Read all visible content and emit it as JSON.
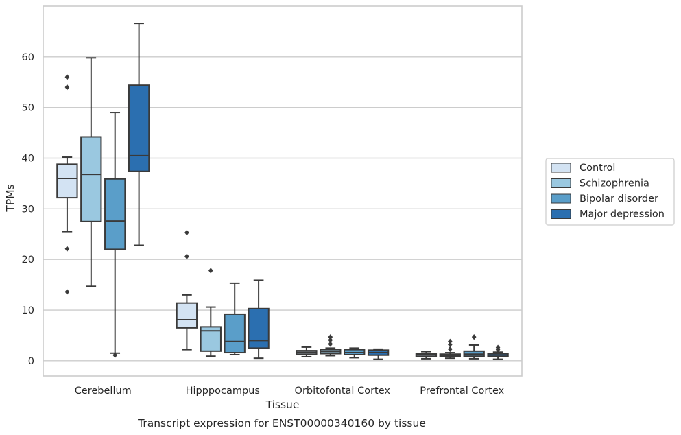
{
  "chart_data": {
    "type": "box",
    "caption": "Transcript expression for ENST00000340160 by tissue",
    "xlabel": "Tissue",
    "ylabel": "TPMs",
    "ylim": [
      -3,
      70
    ],
    "yticks": [
      0,
      10,
      20,
      30,
      40,
      50,
      60
    ],
    "grid": "horizontal",
    "legend_position": "right",
    "categories": [
      "Cerebellum",
      "Hipppocampus",
      "Orbitofontal Cortex",
      "Prefrontal Cortex"
    ],
    "series": [
      {
        "name": "Control",
        "color": "#d3e3f3",
        "boxes": [
          {
            "whislo": 25.5,
            "q1": 32.2,
            "med": 36.0,
            "q3": 38.8,
            "whishi": 40.2,
            "fliers": [
              56.0,
              54.0,
              22.1,
              13.6
            ]
          },
          {
            "whislo": 2.2,
            "q1": 6.5,
            "med": 8.1,
            "q3": 11.4,
            "whishi": 13.0,
            "fliers": [
              25.3,
              20.6
            ]
          },
          {
            "whislo": 0.8,
            "q1": 1.3,
            "med": 1.7,
            "q3": 2.0,
            "whishi": 2.7,
            "fliers": []
          },
          {
            "whislo": 0.4,
            "q1": 0.9,
            "med": 1.2,
            "q3": 1.4,
            "whishi": 1.8,
            "fliers": []
          }
        ]
      },
      {
        "name": "Schizophrenia",
        "color": "#9ac8e0",
        "boxes": [
          {
            "whislo": 14.7,
            "q1": 27.5,
            "med": 36.8,
            "q3": 44.2,
            "whishi": 59.8,
            "fliers": []
          },
          {
            "whislo": 0.9,
            "q1": 1.9,
            "med": 5.9,
            "q3": 6.7,
            "whishi": 10.6,
            "fliers": [
              17.8
            ]
          },
          {
            "whislo": 1.0,
            "q1": 1.4,
            "med": 1.8,
            "q3": 2.2,
            "whishi": 2.5,
            "fliers": [
              4.7,
              4.1,
              3.3
            ]
          },
          {
            "whislo": 0.5,
            "q1": 0.9,
            "med": 1.1,
            "q3": 1.3,
            "whishi": 1.6,
            "fliers": [
              3.8,
              3.2,
              2.3
            ]
          }
        ]
      },
      {
        "name": "Bipolar disorder",
        "color": "#5a9ec9",
        "boxes": [
          {
            "whislo": 1.5,
            "q1": 22.0,
            "med": 27.6,
            "q3": 35.9,
            "whishi": 49.0,
            "fliers": [
              1.1
            ]
          },
          {
            "whislo": 1.2,
            "q1": 1.6,
            "med": 3.8,
            "q3": 9.2,
            "whishi": 15.3,
            "fliers": []
          },
          {
            "whislo": 0.6,
            "q1": 1.2,
            "med": 1.6,
            "q3": 2.2,
            "whishi": 2.5,
            "fliers": []
          },
          {
            "whislo": 0.4,
            "q1": 0.9,
            "med": 1.3,
            "q3": 1.9,
            "whishi": 3.1,
            "fliers": [
              4.7
            ]
          }
        ]
      },
      {
        "name": "Major depression",
        "color": "#2b6fb0",
        "boxes": [
          {
            "whislo": 22.8,
            "q1": 37.4,
            "med": 40.5,
            "q3": 54.4,
            "whishi": 66.6,
            "fliers": []
          },
          {
            "whislo": 0.5,
            "q1": 2.5,
            "med": 4.0,
            "q3": 10.3,
            "whishi": 15.9,
            "fliers": []
          },
          {
            "whislo": 0.3,
            "q1": 1.1,
            "med": 1.6,
            "q3": 2.1,
            "whishi": 2.3,
            "fliers": []
          },
          {
            "whislo": 0.3,
            "q1": 0.8,
            "med": 1.1,
            "q3": 1.4,
            "whishi": 1.7,
            "fliers": [
              2.6,
              2.2
            ]
          }
        ]
      }
    ]
  }
}
